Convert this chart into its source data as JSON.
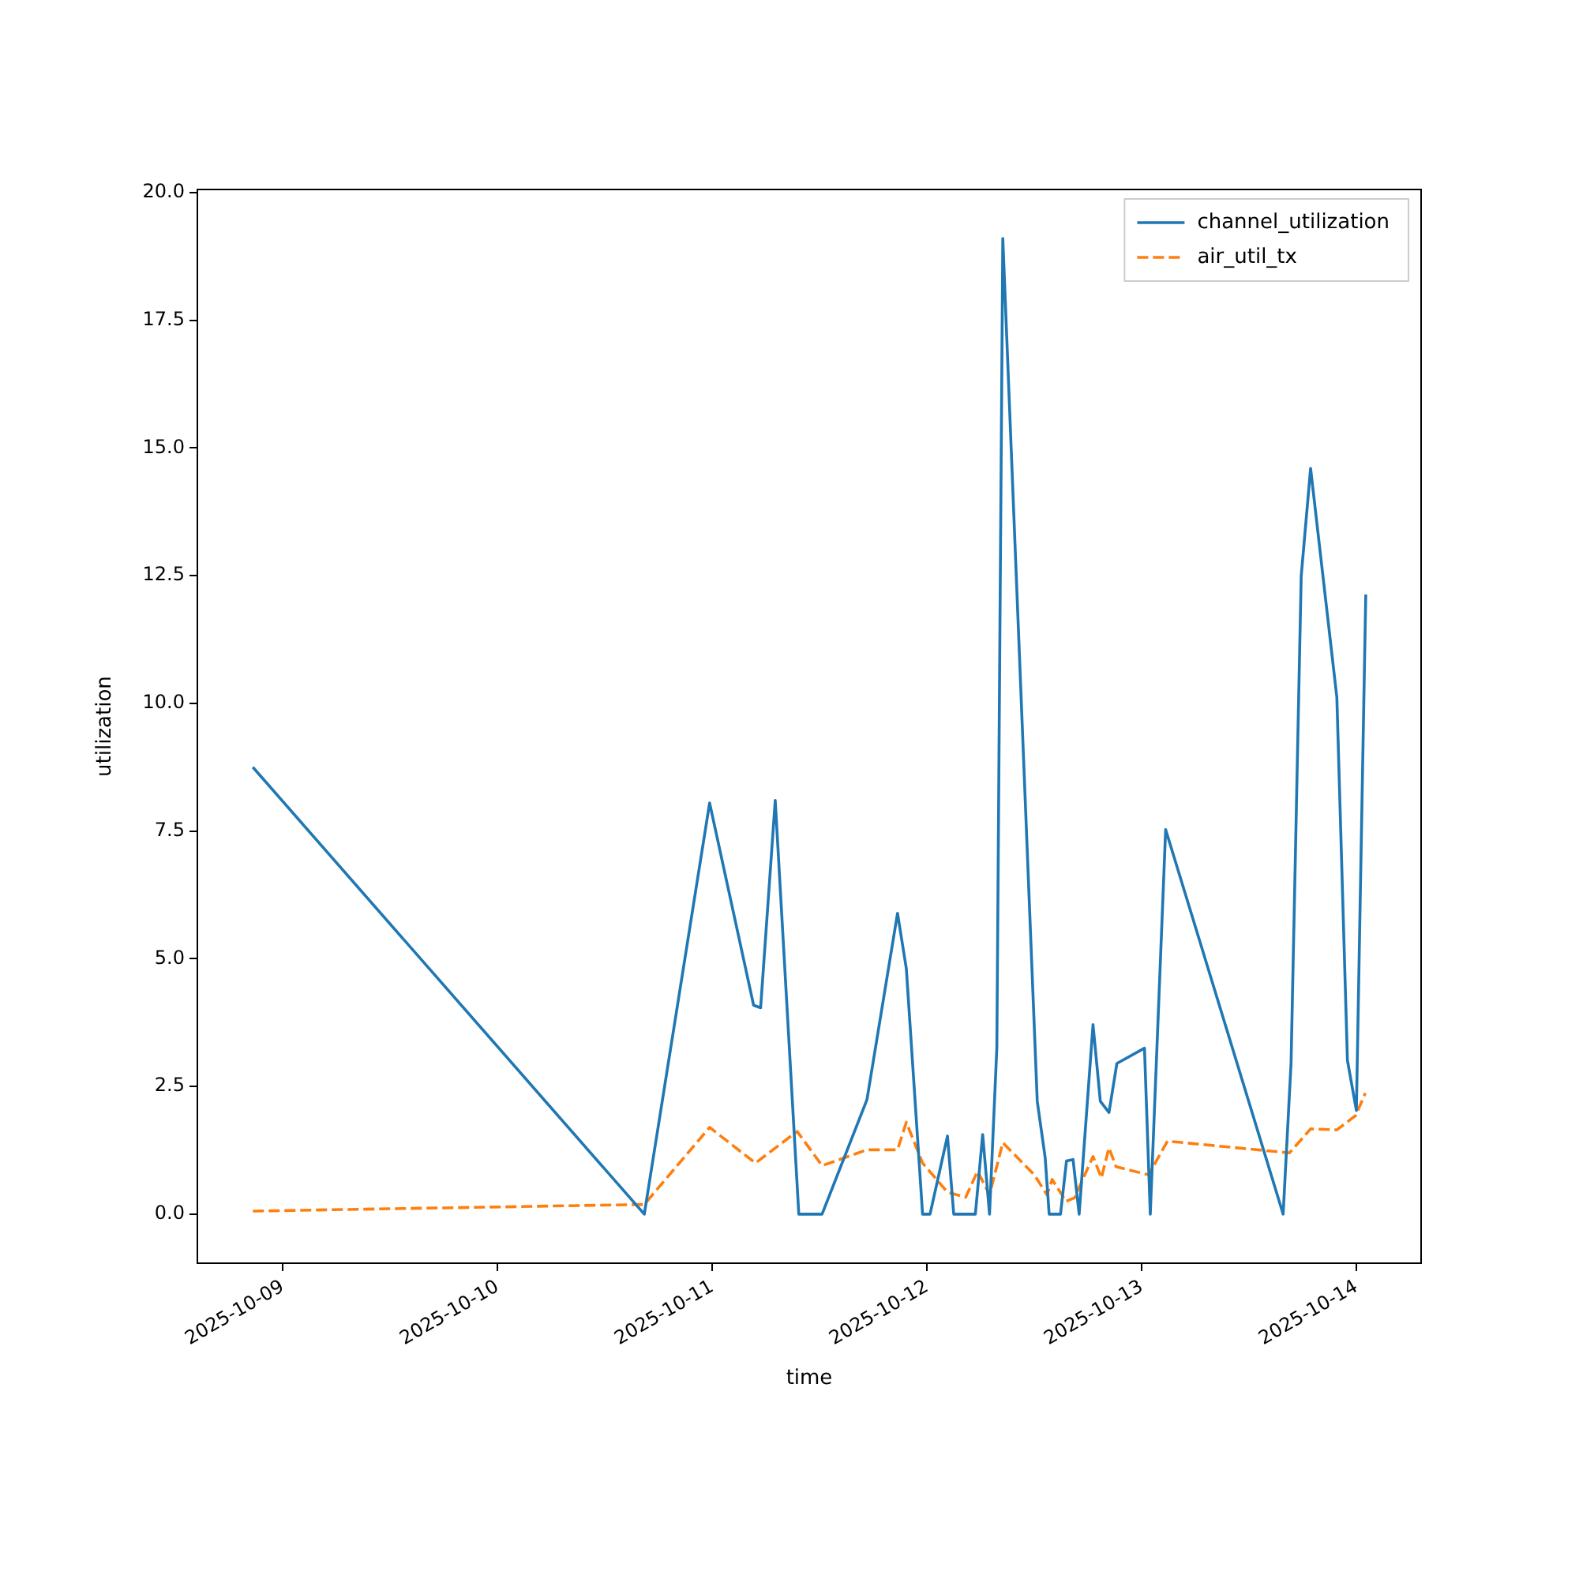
{
  "chart_data": {
    "type": "line",
    "xlabel": "time",
    "ylabel": "utilization",
    "xlim": [
      "2025-10-08T14:28",
      "2025-10-14T07:14"
    ],
    "xticks": [
      "2025-10-09",
      "2025-10-10",
      "2025-10-11",
      "2025-10-12",
      "2025-10-13",
      "2025-10-14"
    ],
    "ylim": [
      -0.96,
      20.06
    ],
    "yticks": [
      {
        "value": 0,
        "label": "0.0"
      },
      {
        "value": 2.5,
        "label": "2.5"
      },
      {
        "value": 5,
        "label": "5.0"
      },
      {
        "value": 7.5,
        "label": "7.5"
      },
      {
        "value": 10,
        "label": "10.0"
      },
      {
        "value": 12.5,
        "label": "12.5"
      },
      {
        "value": 15,
        "label": "15.0"
      },
      {
        "value": 17.5,
        "label": "17.5"
      },
      {
        "value": 20,
        "label": "20.0"
      }
    ],
    "grid": false,
    "legend": "top right",
    "marker": "none",
    "series": [
      {
        "name": "channel_utilization",
        "color": "#1f77b4",
        "line_style": "solid",
        "x": [
          "2025-10-08T20:40",
          "2025-10-10T16:25",
          "2025-10-10T23:43",
          "2025-10-11T04:38",
          "2025-10-11T05:25",
          "2025-10-11T07:03",
          "2025-10-11T09:41",
          "2025-10-11T12:17",
          "2025-10-11T17:18",
          "2025-10-11T20:43",
          "2025-10-11T21:42",
          "2025-10-11T23:31",
          "2025-10-12T00:21",
          "2025-10-12T02:18",
          "2025-10-12T03:00",
          "2025-10-12T05:25",
          "2025-10-12T06:14",
          "2025-10-12T07:00",
          "2025-10-12T07:49",
          "2025-10-12T08:29",
          "2025-10-12T12:20",
          "2025-10-12T13:13",
          "2025-10-12T13:40",
          "2025-10-12T14:56",
          "2025-10-12T15:36",
          "2025-10-12T16:20",
          "2025-10-12T17:01",
          "2025-10-12T18:34",
          "2025-10-12T19:23",
          "2025-10-12T20:21",
          "2025-10-12T21:14",
          "2025-10-13T00:19",
          "2025-10-13T00:58",
          "2025-10-13T02:41",
          "2025-10-13T15:49",
          "2025-10-13T16:42",
          "2025-10-13T17:50",
          "2025-10-13T18:53",
          "2025-10-13T21:49",
          "2025-10-13T23:00",
          "2025-10-14T00:00",
          "2025-10-14T01:03"
        ],
        "values": [
          8.75,
          0,
          8.05,
          4.09,
          4.04,
          8.1,
          0,
          0,
          2.24,
          5.89,
          4.81,
          0,
          0,
          1.53,
          0,
          0,
          1.56,
          0,
          3.26,
          19.1,
          2.21,
          1.11,
          0,
          0,
          1.04,
          1.07,
          0,
          3.71,
          2.21,
          1.99,
          2.95,
          3.25,
          0,
          7.53,
          0,
          2.96,
          12.49,
          14.6,
          10.12,
          3.01,
          2.03,
          12.13
        ]
      },
      {
        "name": "air_util_tx",
        "color": "#ff7f0e",
        "line_style": "dashed",
        "x": [
          "2025-10-08T20:40",
          "2025-10-10T16:25",
          "2025-10-10T23:43",
          "2025-10-11T04:50",
          "2025-10-11T09:30",
          "2025-10-11T12:17",
          "2025-10-11T17:18",
          "2025-10-11T20:43",
          "2025-10-11T21:42",
          "2025-10-11T23:31",
          "2025-10-12T02:18",
          "2025-10-12T04:20",
          "2025-10-12T05:40",
          "2025-10-12T07:00",
          "2025-10-12T08:29",
          "2025-10-12T12:00",
          "2025-10-12T13:25",
          "2025-10-12T14:00",
          "2025-10-12T15:33",
          "2025-10-12T16:30",
          "2025-10-12T18:34",
          "2025-10-12T19:30",
          "2025-10-12T20:21",
          "2025-10-12T21:08",
          "2025-10-13T00:46",
          "2025-10-13T02:53",
          "2025-10-13T16:31",
          "2025-10-13T18:53",
          "2025-10-13T21:49",
          "2025-10-13T23:55",
          "2025-10-14T01:00"
        ],
        "values": [
          0.06,
          0.19,
          1.7,
          1.0,
          1.62,
          0.95,
          1.26,
          1.26,
          1.8,
          1.0,
          0.43,
          0.33,
          0.84,
          0.38,
          1.4,
          0.77,
          0.38,
          0.68,
          0.25,
          0.32,
          1.13,
          0.71,
          1.3,
          0.93,
          0.77,
          1.43,
          1.2,
          1.67,
          1.65,
          1.93,
          2.37
        ]
      }
    ]
  }
}
